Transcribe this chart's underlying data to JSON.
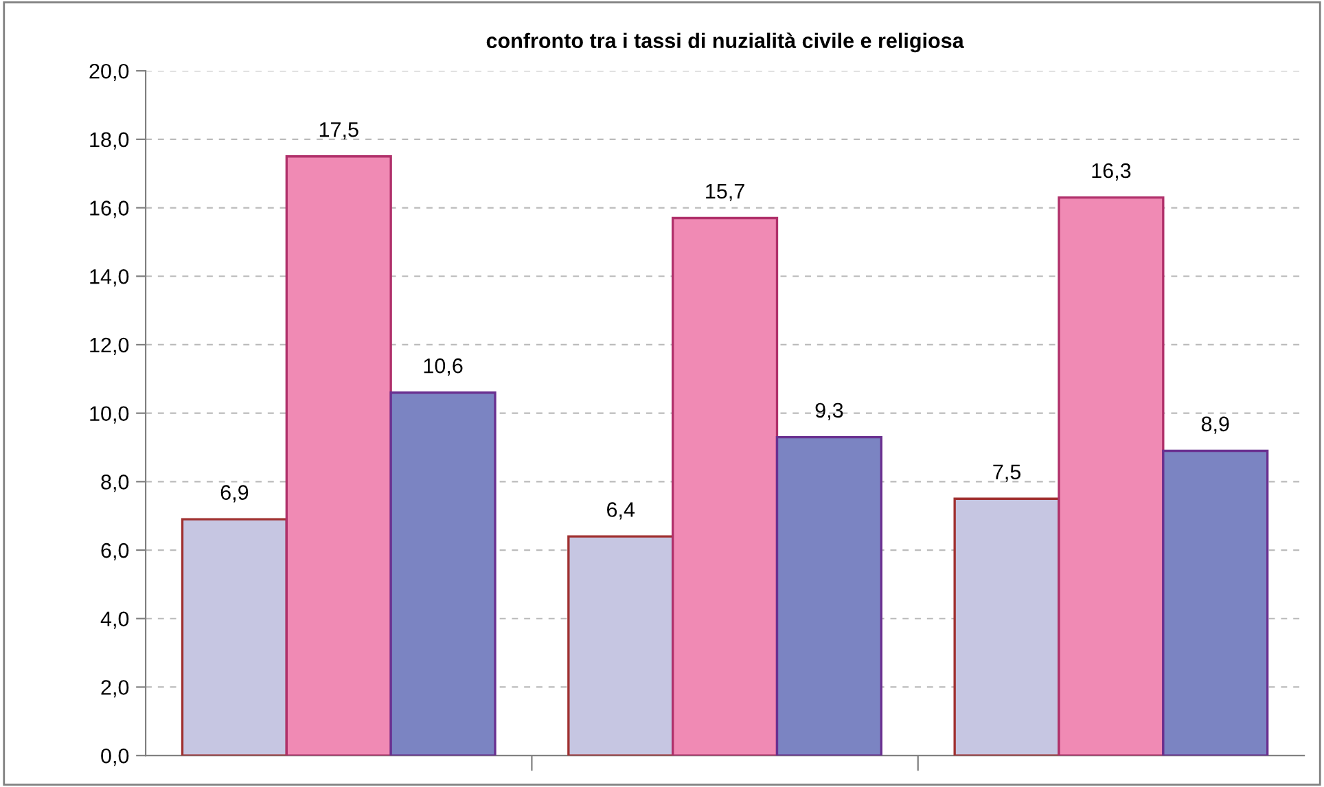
{
  "chart_data": {
    "type": "bar",
    "title": "confronto tra i tassi di nuzialità civile e religiosa",
    "categories": [
      null,
      null,
      null
    ],
    "series": [
      {
        "color": "#c6c6e2",
        "values": [
          6.9,
          6.4,
          7.5
        ],
        "value_labels": [
          "6,9",
          "6,4",
          "7,5"
        ]
      },
      {
        "color": "#f08ab4",
        "values": [
          17.5,
          15.7,
          16.3
        ],
        "value_labels": [
          "17,5",
          "15,7",
          "16,3"
        ]
      },
      {
        "color": "#7b84c2",
        "values": [
          10.6,
          9.3,
          8.9
        ],
        "value_labels": [
          "10,6",
          "9,3",
          "8,9"
        ]
      }
    ],
    "ylim": [
      0,
      20
    ],
    "yticks": [
      {
        "value": 0,
        "label": "0,0"
      },
      {
        "value": 2,
        "label": "2,0"
      },
      {
        "value": 4,
        "label": "4,0"
      },
      {
        "value": 6,
        "label": "6,0"
      },
      {
        "value": 8,
        "label": "8,0"
      },
      {
        "value": 10,
        "label": "10,0"
      },
      {
        "value": 12,
        "label": "12,0"
      },
      {
        "value": 14,
        "label": "14,0"
      },
      {
        "value": 16,
        "label": "16,0"
      },
      {
        "value": 18,
        "label": "18,0"
      },
      {
        "value": 20,
        "label": "20,0"
      }
    ],
    "grid": "y",
    "legend": false
  }
}
